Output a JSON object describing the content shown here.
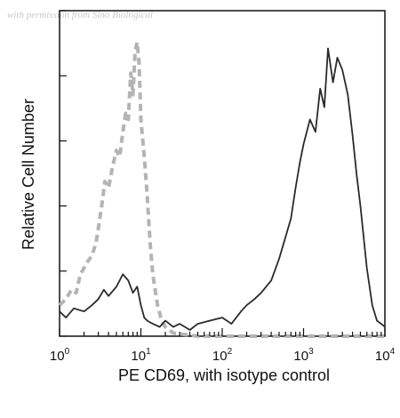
{
  "watermark": "with permission from Sino Biological",
  "chart_data": {
    "type": "line",
    "title": "",
    "xlabel": "PE CD69, with isotype control",
    "ylabel": "Relative Cell Number",
    "x_scale": "log",
    "xlim": [
      1,
      10000
    ],
    "ylim": [
      0,
      1
    ],
    "x_tick_labels": [
      {
        "base": "10",
        "exp": "0",
        "value": 1
      },
      {
        "base": "10",
        "exp": "1",
        "value": 10
      },
      {
        "base": "10",
        "exp": "2",
        "value": 100
      },
      {
        "base": "10",
        "exp": "3",
        "value": 1000
      },
      {
        "base": "10",
        "exp": "4",
        "value": 10000
      }
    ],
    "y_tick_labels": [],
    "grid": false,
    "legend": null,
    "colors": {
      "sample": "#2a2a2a",
      "isotype": "#b4b4b4"
    },
    "series": [
      {
        "style": "solid",
        "x": [
          1,
          1.2,
          1.5,
          2,
          2.5,
          3,
          3.5,
          4,
          5,
          6,
          7,
          8,
          9,
          10,
          11,
          12,
          14,
          17,
          20,
          25,
          30,
          40,
          50,
          70,
          100,
          130,
          170,
          200,
          250,
          300,
          400,
          500,
          600,
          700,
          800,
          900,
          1000,
          1200,
          1400,
          1600,
          1800,
          2000,
          2300,
          2600,
          3000,
          3500,
          4000,
          4500,
          5000,
          6000,
          7000,
          8000,
          9000,
          10000
        ],
        "y": [
          0.08,
          0.06,
          0.09,
          0.08,
          0.1,
          0.12,
          0.15,
          0.13,
          0.16,
          0.2,
          0.18,
          0.14,
          0.16,
          0.1,
          0.06,
          0.05,
          0.04,
          0.03,
          0.05,
          0.03,
          0.04,
          0.02,
          0.04,
          0.05,
          0.06,
          0.04,
          0.08,
          0.1,
          0.12,
          0.14,
          0.18,
          0.25,
          0.32,
          0.38,
          0.48,
          0.56,
          0.62,
          0.7,
          0.66,
          0.8,
          0.74,
          0.93,
          0.82,
          0.9,
          0.86,
          0.78,
          0.65,
          0.52,
          0.42,
          0.22,
          0.1,
          0.05,
          0.04,
          0.03
        ]
      },
      {
        "style": "dashed",
        "x": [
          1,
          1.2,
          1.4,
          1.6,
          1.8,
          2,
          2.2,
          2.5,
          2.8,
          3,
          3.3,
          3.6,
          4,
          4.5,
          5,
          5.5,
          6,
          6.5,
          7,
          7.5,
          8,
          8.5,
          9,
          9.5,
          10,
          11,
          12,
          13,
          14,
          16,
          18,
          20,
          25,
          50,
          100,
          300,
          1000,
          3000,
          10000
        ],
        "y": [
          0.1,
          0.12,
          0.15,
          0.14,
          0.2,
          0.22,
          0.24,
          0.26,
          0.3,
          0.35,
          0.42,
          0.5,
          0.48,
          0.55,
          0.6,
          0.58,
          0.66,
          0.72,
          0.7,
          0.85,
          0.78,
          0.92,
          0.95,
          0.88,
          0.7,
          0.58,
          0.45,
          0.3,
          0.2,
          0.1,
          0.05,
          0.03,
          0.01,
          0,
          0,
          0,
          0,
          0,
          0
        ]
      }
    ]
  }
}
